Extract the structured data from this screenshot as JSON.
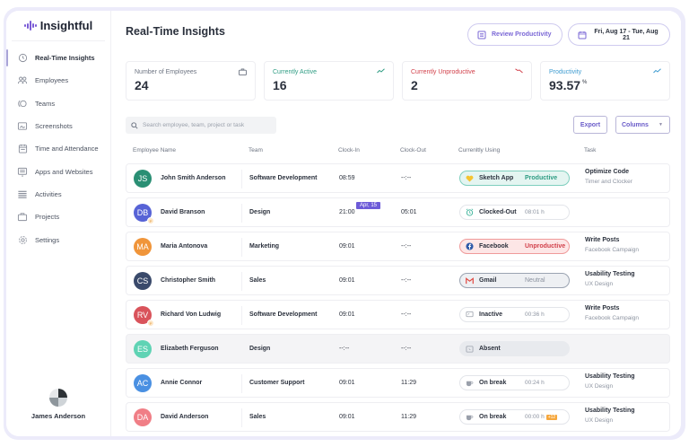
{
  "brand": {
    "name": "Insightful",
    "accent": "#7b5cd6"
  },
  "sidebar": {
    "items": [
      {
        "label": "Real-Time Insights",
        "icon": "clock-icon",
        "active": true
      },
      {
        "label": "Employees",
        "icon": "employees-icon"
      },
      {
        "label": "Teams",
        "icon": "teams-icon"
      },
      {
        "label": "Screenshots",
        "icon": "screenshots-icon"
      },
      {
        "label": "Time and Attendance",
        "icon": "calendar-icon"
      },
      {
        "label": "Apps and Websites",
        "icon": "monitor-icon"
      },
      {
        "label": "Activities",
        "icon": "list-icon"
      },
      {
        "label": "Projects",
        "icon": "briefcase-icon"
      },
      {
        "label": "Settings",
        "icon": "gear-icon"
      }
    ],
    "user": {
      "name": "James Anderson"
    }
  },
  "header": {
    "title": "Real-Time Insights",
    "review_label": "Review Productivity",
    "date_range": "Fri, Aug 17 - Tue, Aug 21"
  },
  "stats": [
    {
      "label": "Number of Employees",
      "value": "24",
      "color": "#6d7482",
      "icon": "briefcase-icon"
    },
    {
      "label": "Currently Active",
      "value": "16",
      "color": "#2e9c83",
      "icon": "trend-up-icon"
    },
    {
      "label": "Currently Unproductive",
      "value": "2",
      "color": "#d2414b",
      "icon": "trend-down-icon"
    },
    {
      "label": "Productivity",
      "value": "93.57",
      "unit": "%",
      "color": "#3d9bd0",
      "icon": "trend-up-icon"
    }
  ],
  "toolbar": {
    "search_placeholder": "Search employee, team, project or task",
    "export_label": "Export",
    "columns_label": "Columns"
  },
  "table": {
    "columns": [
      "Employee Name",
      "Team",
      "Clock-In",
      "Clock-Out",
      "Currenltly Using",
      "Task"
    ],
    "rows": [
      {
        "initials": "JS",
        "color": "#2a8f74",
        "name": "John Smith Anderson",
        "team": "Software Development",
        "clock_in": "08:59",
        "clock_out": "--:--",
        "status": {
          "type": "productive",
          "icon": "heart-icon",
          "name": "Sketch App",
          "state": "Productive"
        },
        "task": {
          "title": "Optimize Code",
          "sub": "Timer and Clocker"
        }
      },
      {
        "initials": "DB",
        "color": "#5763d6",
        "tag": "P",
        "name": "David Branson",
        "team": "Design",
        "clock_in": "21:00",
        "date_tag": "Apr, 15",
        "clock_out": "05:01",
        "status": {
          "type": "clocked",
          "icon": "alarm-icon",
          "name": "Clocked-Out",
          "time": "08:01 h"
        },
        "task": null
      },
      {
        "initials": "MA",
        "color": "#f0953a",
        "name": "Maria Antonova",
        "team": "Marketing",
        "clock_in": "09:01",
        "clock_out": "--:--",
        "status": {
          "type": "unproductive",
          "icon": "facebook-icon",
          "name": "Facebook",
          "state": "Unproductive"
        },
        "task": {
          "title": "Write Posts",
          "sub": "Facebook Campaign"
        }
      },
      {
        "initials": "CS",
        "color": "#3a4a6b",
        "name": "Christopher Smith",
        "team": "Sales",
        "clock_in": "09:01",
        "clock_out": "--:--",
        "status": {
          "type": "neutral",
          "icon": "gmail-icon",
          "name": "Gmail",
          "state": "Neutral"
        },
        "task": {
          "title": "Usability Testing",
          "sub": "UX Design"
        }
      },
      {
        "initials": "RV",
        "color": "#d9535b",
        "tag": "P",
        "name": "Richard Von Ludwig",
        "team": "Software Development",
        "clock_in": "09:01",
        "clock_out": "--:--",
        "status": {
          "type": "inactive",
          "icon": "inactive-icon",
          "name": "Inactive",
          "time": "00:36 h"
        },
        "task": {
          "title": "Write Posts",
          "sub": "Facebook Campaign"
        }
      },
      {
        "initials": "ES",
        "color": "#5fd3b4",
        "name": "Elizabeth Ferguson",
        "team": "Design",
        "clock_in": "--:--",
        "clock_out": "--:--",
        "muted": true,
        "status": {
          "type": "absent",
          "icon": "absent-icon",
          "name": "Absent"
        },
        "task": null
      },
      {
        "initials": "AC",
        "color": "#4a90e2",
        "name": "Annie Connor",
        "team": "Customer Support",
        "clock_in": "09:01",
        "clock_out": "11:29",
        "status": {
          "type": "break",
          "icon": "coffee-icon",
          "name": "On break",
          "time": "00:24 h"
        },
        "task": {
          "title": "Usability Testing",
          "sub": "UX Design"
        }
      },
      {
        "initials": "DA",
        "color": "#f07e86",
        "name": "David Anderson",
        "team": "Sales",
        "clock_in": "09:01",
        "clock_out": "11:29",
        "status": {
          "type": "break",
          "icon": "coffee-icon",
          "name": "On break",
          "time": "00:00 h",
          "overtime": "+12"
        },
        "task": {
          "title": "Usability Testing",
          "sub": "UX Design"
        }
      }
    ]
  }
}
